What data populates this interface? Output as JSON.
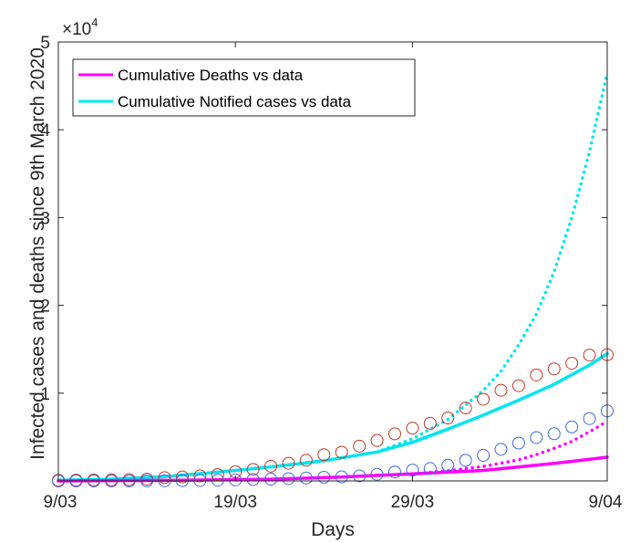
{
  "chart_data": {
    "type": "line",
    "xlabel": "Days",
    "ylabel": "Infected cases and deaths since 9th March 2020",
    "y_exponent_label": "×10",
    "y_exponent_power": "4",
    "xlim": [
      0,
      31
    ],
    "ylim": [
      0,
      50000
    ],
    "x_ticks": [
      0,
      10,
      20,
      31
    ],
    "x_tick_labels": [
      "9/03",
      "19/03",
      "29/03",
      "9/04"
    ],
    "y_ticks": [
      10000,
      20000,
      30000,
      40000,
      50000
    ],
    "y_tick_labels": [
      "1",
      "2",
      "3",
      "4",
      "5"
    ],
    "grid": false,
    "legend_position": "top-left",
    "legend": [
      {
        "label": "Cumulative Deaths vs data",
        "color": "#ff00ff"
      },
      {
        "label": "Cumulative Notified cases vs data",
        "color": "#00e5ee"
      }
    ],
    "series": [
      {
        "name": "Cumulative Notified cases vs data",
        "style": "solid",
        "color": "#00e5ee",
        "x": [
          0,
          3,
          6,
          9,
          12,
          15,
          18,
          20,
          22,
          24,
          26,
          28,
          30,
          31
        ],
        "y": [
          80,
          200,
          500,
          1000,
          1600,
          2300,
          3300,
          4400,
          5900,
          7500,
          9200,
          11000,
          13200,
          14500
        ]
      },
      {
        "name": "Cumulative Deaths vs data",
        "style": "solid",
        "color": "#ff00ff",
        "x": [
          0,
          6,
          12,
          16,
          20,
          24,
          28,
          31
        ],
        "y": [
          0,
          60,
          200,
          450,
          800,
          1200,
          2000,
          2700
        ]
      },
      {
        "style": "dotted",
        "color": "#00e5ee",
        "x": [
          18,
          20,
          22,
          24,
          25,
          26,
          27,
          28,
          29,
          30,
          31
        ],
        "y": [
          3300,
          4800,
          7000,
          10300,
          12500,
          15500,
          19000,
          23800,
          30000,
          37500,
          46500
        ]
      },
      {
        "style": "dotted",
        "color": "#ff00ff",
        "x": [
          20,
          22,
          24,
          26,
          27,
          28,
          29,
          30,
          31
        ],
        "y": [
          800,
          1150,
          1650,
          2400,
          3000,
          3700,
          4500,
          5600,
          6800
        ]
      },
      {
        "style": "markers",
        "color": "#c0392b",
        "x": [
          0,
          1,
          2,
          3,
          4,
          5,
          6,
          7,
          8,
          9,
          10,
          11,
          12,
          13,
          14,
          15,
          16,
          17,
          18,
          19,
          20,
          21,
          22,
          23,
          24,
          25,
          26,
          27,
          28,
          29,
          30,
          31
        ],
        "y": [
          77,
          93,
          107,
          128,
          150,
          210,
          377,
          452,
          568,
          709,
          1049,
          1314,
          1682,
          2019,
          2362,
          2985,
          3274,
          3966,
          4609,
          5364,
          6010,
          6558,
          7172,
          8309,
          9309,
          10330,
          10854,
          12074,
          12762,
          13412,
          14336,
          14380
        ]
      },
      {
        "style": "markers",
        "color": "#4169e1",
        "x": [
          0,
          1,
          2,
          3,
          4,
          5,
          6,
          7,
          8,
          9,
          10,
          11,
          12,
          13,
          14,
          15,
          16,
          17,
          18,
          19,
          20,
          21,
          22,
          23,
          24,
          25,
          26,
          27,
          28,
          29,
          30,
          31
        ],
        "y": [
          0,
          0,
          0,
          0,
          0,
          10,
          21,
          35,
          55,
          81,
          121,
          167,
          206,
          265,
          335,
          422,
          465,
          578,
          759,
          1019,
          1228,
          1415,
          1789,
          2352,
          2921,
          3605,
          4313,
          4934,
          5373,
          6159,
          7097,
          7978
        ]
      }
    ]
  }
}
